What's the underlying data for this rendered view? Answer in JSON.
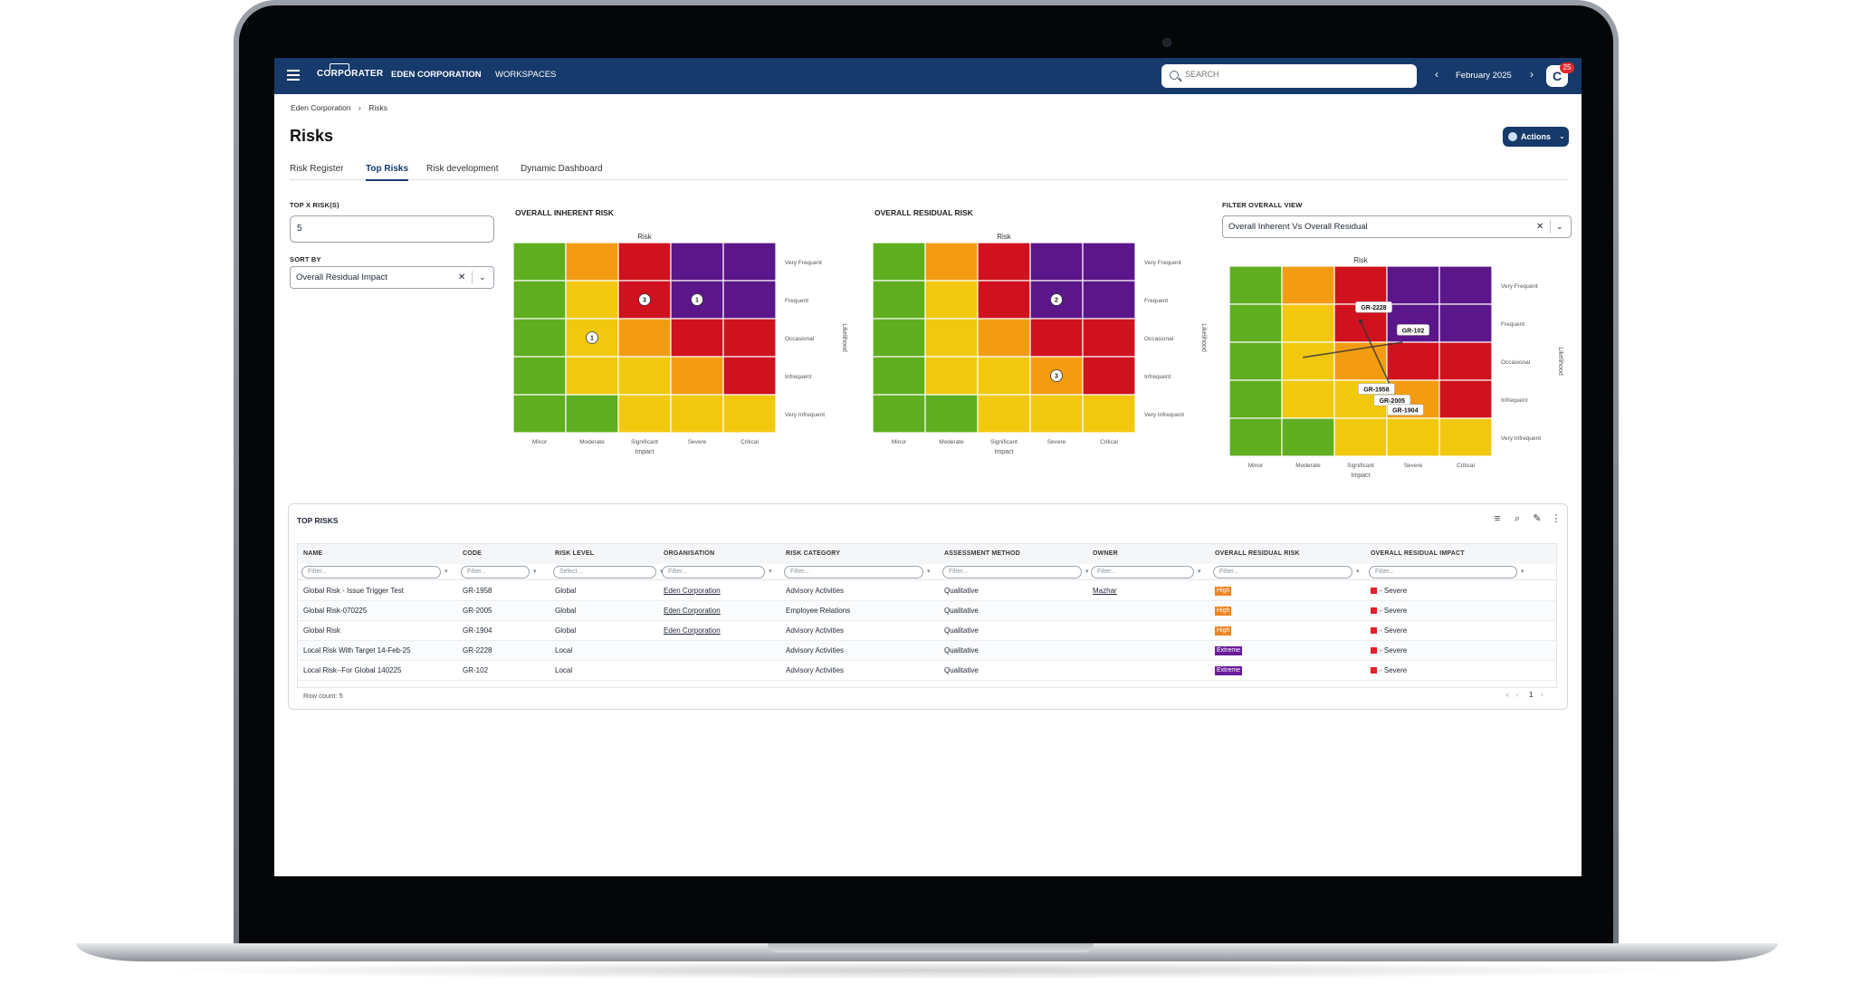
{
  "app": {
    "logo": "CORPORATER",
    "nav": [
      "EDEN CORPORATION",
      "WORKSPACES"
    ],
    "search_placeholder": "SEARCH",
    "period": "February 2025",
    "avatar_initial": "C",
    "notification_count": "25"
  },
  "breadcrumb": [
    "Eden Corporation",
    "Risks"
  ],
  "page": {
    "title": "Risks",
    "actions_label": "Actions"
  },
  "tabs": [
    {
      "label": "Risk Register",
      "active": false
    },
    {
      "label": "Top Risks",
      "active": true
    },
    {
      "label": "Risk development",
      "active": false
    },
    {
      "label": "Dynamic Dashboard",
      "active": false
    }
  ],
  "controls": {
    "top_x_label": "TOP X RISK(S)",
    "top_x_value": "5",
    "sort_by_label": "SORT BY",
    "sort_by_value": "Overall Residual Impact",
    "filter_view_label": "FILTER OVERALL VIEW",
    "filter_view_value": "Overall Inherent Vs Overall Residual"
  },
  "matrix_axes": {
    "top_label": "Risk",
    "impact_label": "Impact",
    "likelihood_label": "Likelihood",
    "impact_levels": [
      "Minor",
      "Moderate",
      "Significant",
      "Severe",
      "Critical"
    ],
    "likelihood_levels": [
      "Very Frequent",
      "Frequent",
      "Occasional",
      "Infrequent",
      "Very Infrequent"
    ]
  },
  "matrices": [
    {
      "title": "OVERALL INHERENT RISK",
      "colors": [
        [
          "#5fae1f",
          "#f39c12",
          "#d0111e",
          "#5b1689",
          "#5b1689"
        ],
        [
          "#5fae1f",
          "#f2c80f",
          "#d0111e",
          "#5b1689",
          "#5b1689"
        ],
        [
          "#5fae1f",
          "#f2c80f",
          "#f39c12",
          "#d0111e",
          "#d0111e"
        ],
        [
          "#5fae1f",
          "#f2c80f",
          "#f2c80f",
          "#f39c12",
          "#d0111e"
        ],
        [
          "#5fae1f",
          "#5fae1f",
          "#f2c80f",
          "#f2c80f",
          "#f2c80f"
        ]
      ],
      "markers": [
        {
          "row": 1,
          "col": 2,
          "label": "3"
        },
        {
          "row": 1,
          "col": 3,
          "label": "1"
        },
        {
          "row": 2,
          "col": 1,
          "label": "1"
        }
      ]
    },
    {
      "title": "OVERALL RESIDUAL RISK",
      "colors": [
        [
          "#5fae1f",
          "#f39c12",
          "#d0111e",
          "#5b1689",
          "#5b1689"
        ],
        [
          "#5fae1f",
          "#f2c80f",
          "#d0111e",
          "#5b1689",
          "#5b1689"
        ],
        [
          "#5fae1f",
          "#f2c80f",
          "#f39c12",
          "#d0111e",
          "#d0111e"
        ],
        [
          "#5fae1f",
          "#f2c80f",
          "#f2c80f",
          "#f39c12",
          "#d0111e"
        ],
        [
          "#5fae1f",
          "#5fae1f",
          "#f2c80f",
          "#f2c80f",
          "#f2c80f"
        ]
      ],
      "markers": [
        {
          "row": 1,
          "col": 3,
          "label": "2"
        },
        {
          "row": 3,
          "col": 3,
          "label": "3"
        }
      ]
    },
    {
      "title": "",
      "colors": [
        [
          "#5fae1f",
          "#f39c12",
          "#d0111e",
          "#5b1689",
          "#5b1689"
        ],
        [
          "#5fae1f",
          "#f2c80f",
          "#d0111e",
          "#5b1689",
          "#5b1689"
        ],
        [
          "#5fae1f",
          "#f2c80f",
          "#f39c12",
          "#d0111e",
          "#d0111e"
        ],
        [
          "#5fae1f",
          "#f2c80f",
          "#f2c80f",
          "#f39c12",
          "#d0111e"
        ],
        [
          "#5fae1f",
          "#5fae1f",
          "#f2c80f",
          "#f2c80f",
          "#f2c80f"
        ]
      ],
      "markers": [],
      "tags": [
        {
          "label": "GR-2228",
          "row": 1.1,
          "col": 2.75
        },
        {
          "label": "GR-102",
          "row": 1.7,
          "col": 3.5
        },
        {
          "label": "GR-1958",
          "row": 3.25,
          "col": 2.8
        },
        {
          "label": "GR-2005",
          "row": 3.55,
          "col": 3.1
        },
        {
          "label": "GR-1904",
          "row": 3.8,
          "col": 3.35
        }
      ]
    }
  ],
  "table": {
    "title": "TOP RISKS",
    "columns": [
      "NAME",
      "CODE",
      "RISK LEVEL",
      "ORGANISATION",
      "RISK CATEGORY",
      "ASSESSMENT METHOD",
      "OWNER",
      "OVERALL RESIDUAL RISK",
      "OVERALL RESIDUAL IMPACT"
    ],
    "filter_placeholder": "Filter...",
    "select_placeholder": "Select...",
    "rows": [
      {
        "name": "Global Risk - Issue Trigger Test",
        "code": "GR-1958",
        "level": "Global",
        "org": "Eden Corporation",
        "category": "Advisory Activities",
        "method": "Qualitative",
        "owner": "Mazhar",
        "residual_risk": "High",
        "residual_impact": "- Severe"
      },
      {
        "name": "Global Risk-070225",
        "code": "GR-2005",
        "level": "Global",
        "org": "Eden Corporation",
        "category": "Employee Relations",
        "method": "Qualitative",
        "owner": "",
        "residual_risk": "High",
        "residual_impact": "- Severe"
      },
      {
        "name": "Global Risk",
        "code": "GR-1904",
        "level": "Global",
        "org": "Eden Corporation",
        "category": "Advisory Activities",
        "method": "Qualitative",
        "owner": "",
        "residual_risk": "High",
        "residual_impact": "- Severe"
      },
      {
        "name": "Local Risk With Target 14-Feb-25",
        "code": "GR-2228",
        "level": "Local",
        "org": "",
        "category": "Advisory Activities",
        "method": "Qualitative",
        "owner": "",
        "residual_risk": "Extreme",
        "residual_impact": "- Severe"
      },
      {
        "name": "Local Risk--For Global 140225",
        "code": "GR-102",
        "level": "Local",
        "org": "",
        "category": "Advisory Activities",
        "method": "Qualitative",
        "owner": "",
        "residual_risk": "Extreme",
        "residual_impact": "- Severe"
      }
    ],
    "row_count": "Row count: 5",
    "current_page": "1",
    "level_colors": {
      "High": "#f0831e",
      "Extreme": "#6a1b9a"
    },
    "impact_color": "#e0222b"
  }
}
